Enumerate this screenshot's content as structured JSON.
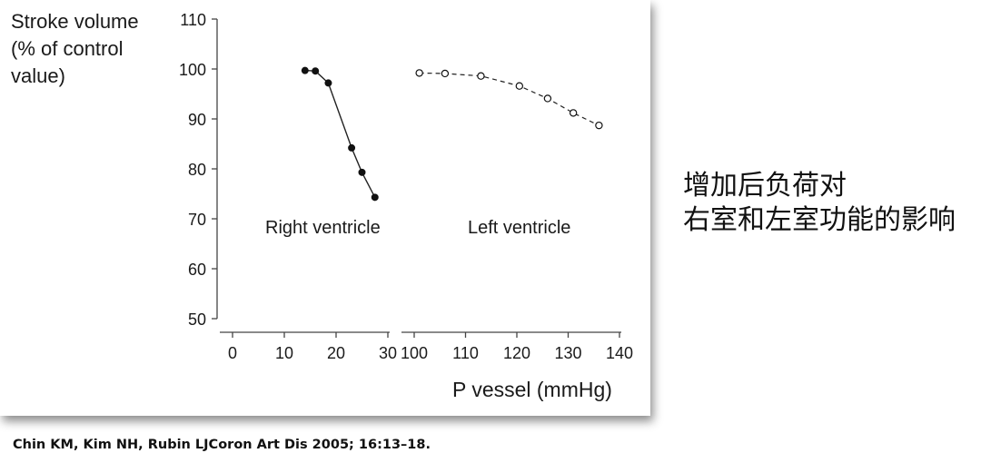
{
  "chart_data": [
    {
      "type": "line",
      "name": "Right ventricle",
      "series_label": "Right ventricle",
      "y_label_lines": [
        "Stroke volume",
        "(% of control",
        "value)"
      ],
      "x_ticks": [
        0,
        10,
        20,
        30
      ],
      "y_ticks": [
        50,
        60,
        70,
        80,
        90,
        100,
        110
      ],
      "xlim": [
        0,
        30
      ],
      "ylim": [
        50,
        110
      ],
      "line_style": "solid",
      "marker": "filled-circle",
      "points": [
        {
          "x": 14,
          "y": 99.7
        },
        {
          "x": 16,
          "y": 99.6
        },
        {
          "x": 18.5,
          "y": 97.2
        },
        {
          "x": 23,
          "y": 84.2
        },
        {
          "x": 25,
          "y": 79.3
        },
        {
          "x": 27.5,
          "y": 74.3
        }
      ]
    },
    {
      "type": "line",
      "name": "Left ventricle",
      "series_label": "Left ventricle",
      "x_ticks": [
        100,
        110,
        120,
        130,
        140
      ],
      "xlim": [
        100,
        140
      ],
      "ylim": [
        50,
        110
      ],
      "line_style": "dashed",
      "marker": "open-circle",
      "points": [
        {
          "x": 101,
          "y": 99.2
        },
        {
          "x": 106,
          "y": 99.1
        },
        {
          "x": 113,
          "y": 98.6
        },
        {
          "x": 120.5,
          "y": 96.6
        },
        {
          "x": 126,
          "y": 94.1
        },
        {
          "x": 131,
          "y": 91.2
        },
        {
          "x": 136,
          "y": 88.7
        }
      ]
    }
  ],
  "x_axis_label": "P vessel (mmHg)",
  "side_caption": [
    "增加后负荷对",
    "右室和左室功能的影响"
  ],
  "citation": "Chin KM, Kim NH, Rubin LJCoron Art Dis 2005; 16:13–18."
}
